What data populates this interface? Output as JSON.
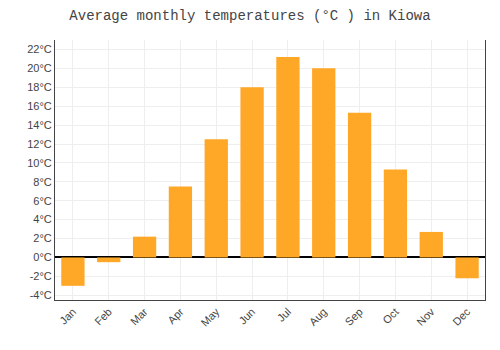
{
  "chart_data": {
    "type": "bar",
    "title": "Average monthly temperatures (°C ) in Kiowa",
    "categories": [
      "Jan",
      "Feb",
      "Mar",
      "Apr",
      "May",
      "Jun",
      "Jul",
      "Aug",
      "Sep",
      "Oct",
      "Nov",
      "Dec"
    ],
    "values": [
      -3.0,
      -0.5,
      2.2,
      7.5,
      12.5,
      18.0,
      21.2,
      20.0,
      15.3,
      9.3,
      2.7,
      -2.2
    ],
    "color": "#FFA726",
    "ylim": [
      -4.5,
      23
    ],
    "yticks": [
      {
        "value": -4,
        "label": "-4°C"
      },
      {
        "value": -2,
        "label": "-2°C"
      },
      {
        "value": 0,
        "label": "0°C"
      },
      {
        "value": 2,
        "label": "2°C"
      },
      {
        "value": 4,
        "label": "4°C"
      },
      {
        "value": 6,
        "label": "6°C"
      },
      {
        "value": 8,
        "label": "8°C"
      },
      {
        "value": 10,
        "label": "10°C"
      },
      {
        "value": 12,
        "label": "12°C"
      },
      {
        "value": 14,
        "label": "14°C"
      },
      {
        "value": 16,
        "label": "16°C"
      },
      {
        "value": 18,
        "label": "18°C"
      },
      {
        "value": 20,
        "label": "20°C"
      },
      {
        "value": 22,
        "label": "22°C"
      }
    ],
    "grid": true
  }
}
